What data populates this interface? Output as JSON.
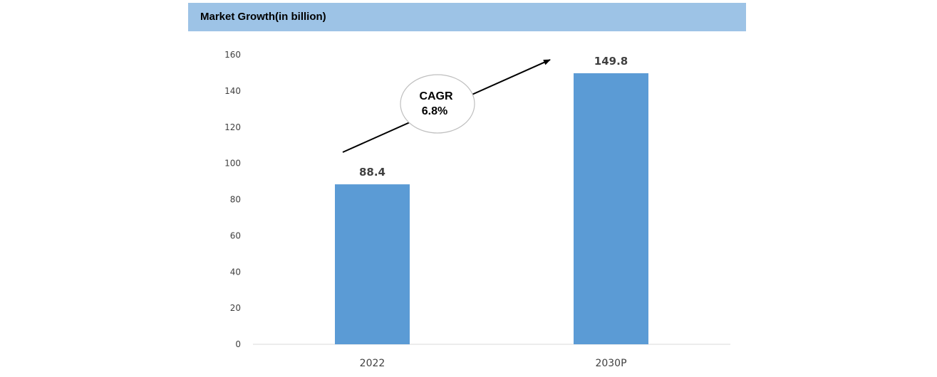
{
  "header": {
    "title": "Market Growth(in billion)"
  },
  "annotation": {
    "line1": "CAGR",
    "line2": "6.8%"
  },
  "colors": {
    "bar": "#5b9bd5",
    "header_bg": "#9dc3e6",
    "axis": "#d9d9d9"
  },
  "chart_data": {
    "type": "bar",
    "categories": [
      "2022",
      "2030P"
    ],
    "values": [
      88.4,
      149.8
    ],
    "data_labels": [
      "88.4",
      "149.8"
    ],
    "ylim": [
      0,
      160
    ],
    "yticks": [
      0,
      20,
      40,
      60,
      80,
      100,
      120,
      140,
      160
    ],
    "title": "Market Growth(in billion)",
    "xlabel": "",
    "ylabel": "",
    "grid": false,
    "legend": "none"
  }
}
